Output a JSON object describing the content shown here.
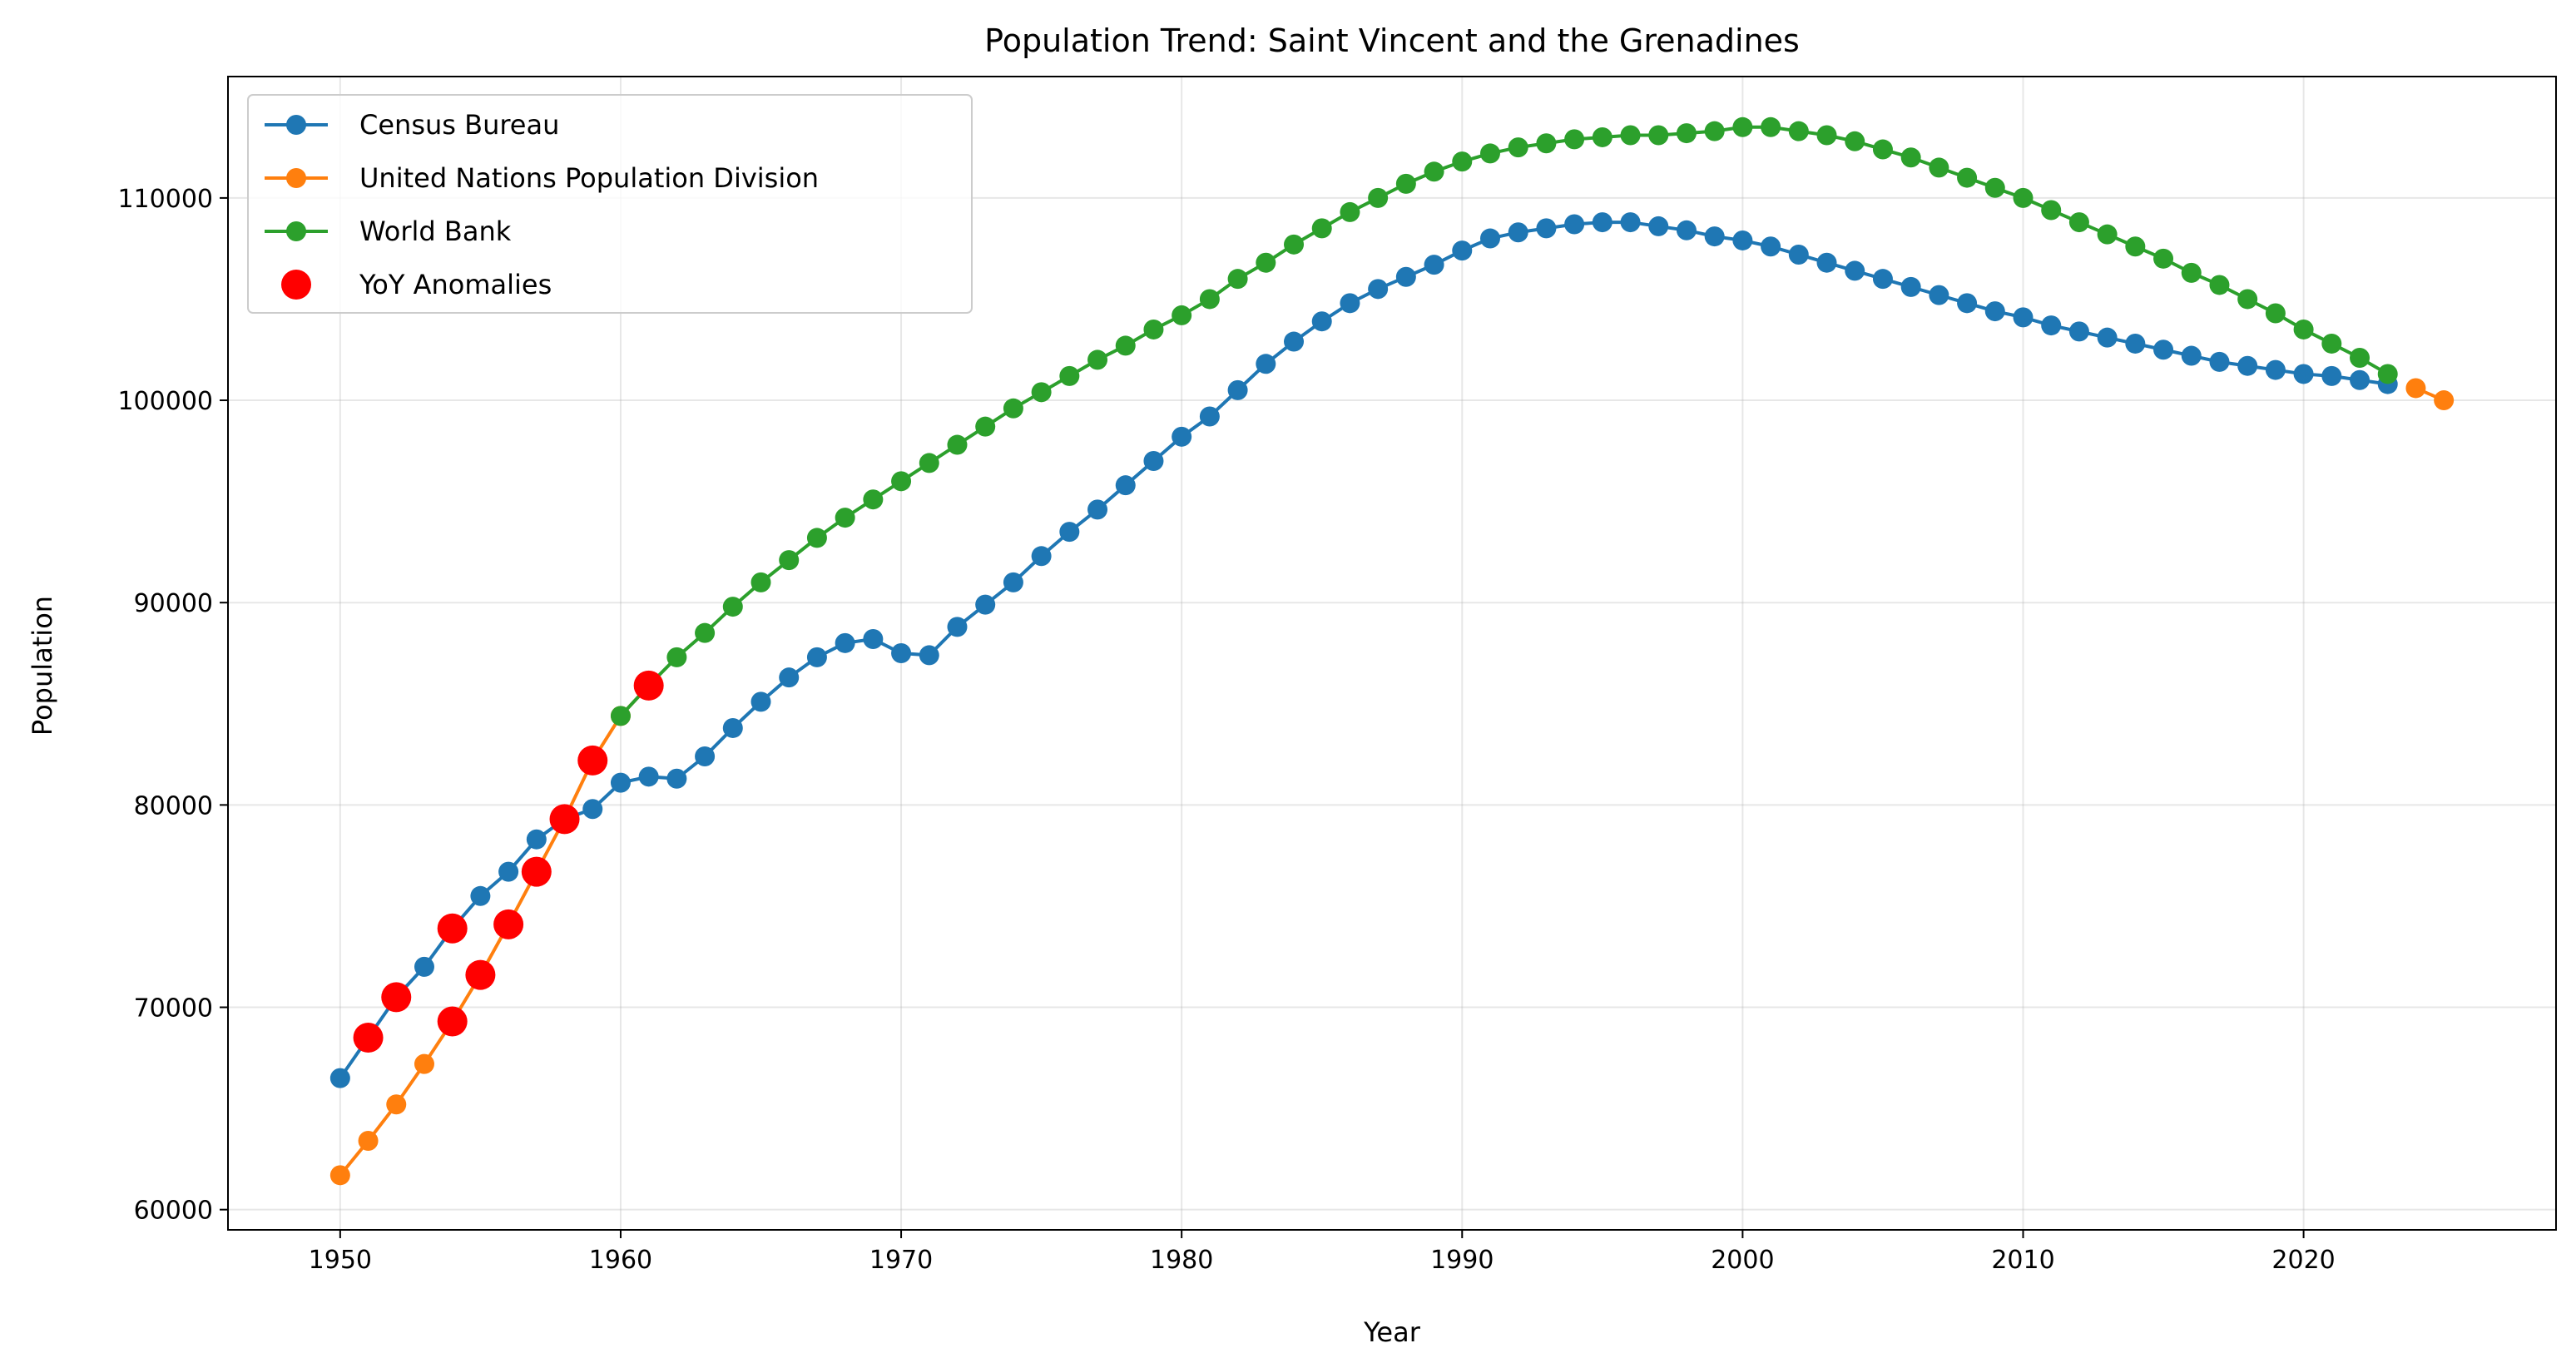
{
  "chart_data": {
    "type": "line",
    "title": "Population Trend: Saint Vincent and the Grenadines",
    "xlabel": "Year",
    "ylabel": "Population",
    "xlim": [
      1946,
      2029
    ],
    "ylim": [
      59000,
      116000
    ],
    "x_ticks": [
      1950,
      1960,
      1970,
      1980,
      1990,
      2000,
      2010,
      2020
    ],
    "y_ticks": [
      60000,
      70000,
      80000,
      90000,
      100000,
      110000
    ],
    "grid": true,
    "legend_position": "top-left",
    "series": [
      {
        "name": "Census Bureau",
        "color": "#1f77b4",
        "x": [
          1950,
          1951,
          1952,
          1953,
          1954,
          1955,
          1956,
          1957,
          1958,
          1959,
          1960,
          1961,
          1962,
          1963,
          1964,
          1965,
          1966,
          1967,
          1968,
          1969,
          1970,
          1971,
          1972,
          1973,
          1974,
          1975,
          1976,
          1977,
          1978,
          1979,
          1980,
          1981,
          1982,
          1983,
          1984,
          1985,
          1986,
          1987,
          1988,
          1989,
          1990,
          1991,
          1992,
          1993,
          1994,
          1995,
          1996,
          1997,
          1998,
          1999,
          2000,
          2001,
          2002,
          2003,
          2004,
          2005,
          2006,
          2007,
          2008,
          2009,
          2010,
          2011,
          2012,
          2013,
          2014,
          2015,
          2016,
          2017,
          2018,
          2019,
          2020,
          2021,
          2022,
          2023
        ],
        "values": [
          66500,
          68500,
          70500,
          72000,
          73900,
          75500,
          76700,
          78300,
          79300,
          79800,
          81100,
          81400,
          81300,
          82400,
          83800,
          85100,
          86300,
          87300,
          88000,
          88200,
          87500,
          87400,
          88800,
          89900,
          91000,
          92300,
          93500,
          94600,
          95800,
          97000,
          98200,
          99200,
          100500,
          101800,
          102900,
          103900,
          104800,
          105500,
          106100,
          106700,
          107400,
          108000,
          108300,
          108500,
          108700,
          108800,
          108800,
          108600,
          108400,
          108100,
          107900,
          107600,
          107200,
          106800,
          106400,
          106000,
          105600,
          105200,
          104800,
          104400,
          104100,
          103700,
          103400,
          103100,
          102800,
          102500,
          102200,
          101900,
          101700,
          101500,
          101300,
          101200,
          101000,
          100800
        ]
      },
      {
        "name": "United Nations Population Division",
        "color": "#ff7f0e",
        "x": [
          1950,
          1951,
          1952,
          1953,
          1954,
          1955,
          1956,
          1957,
          1958,
          1959,
          1960,
          1961,
          2024,
          2025
        ],
        "values": [
          61700,
          63400,
          65200,
          67200,
          69300,
          71600,
          74100,
          76700,
          79300,
          82200,
          84400,
          85900,
          100600,
          100000
        ]
      },
      {
        "name": "World Bank",
        "color": "#2ca02c",
        "x": [
          1960,
          1961,
          1962,
          1963,
          1964,
          1965,
          1966,
          1967,
          1968,
          1969,
          1970,
          1971,
          1972,
          1973,
          1974,
          1975,
          1976,
          1977,
          1978,
          1979,
          1980,
          1981,
          1982,
          1983,
          1984,
          1985,
          1986,
          1987,
          1988,
          1989,
          1990,
          1991,
          1992,
          1993,
          1994,
          1995,
          1996,
          1997,
          1998,
          1999,
          2000,
          2001,
          2002,
          2003,
          2004,
          2005,
          2006,
          2007,
          2008,
          2009,
          2010,
          2011,
          2012,
          2013,
          2014,
          2015,
          2016,
          2017,
          2018,
          2019,
          2020,
          2021,
          2022,
          2023
        ],
        "values": [
          84400,
          85900,
          87300,
          88500,
          89800,
          91000,
          92100,
          93200,
          94200,
          95100,
          96000,
          96900,
          97800,
          98700,
          99600,
          100400,
          101200,
          102000,
          102700,
          103500,
          104200,
          105000,
          106000,
          106800,
          107700,
          108500,
          109300,
          110000,
          110700,
          111300,
          111800,
          112200,
          112500,
          112700,
          112900,
          113000,
          113100,
          113100,
          113200,
          113300,
          113500,
          113500,
          113300,
          113100,
          112800,
          112400,
          112000,
          111500,
          111000,
          110500,
          110000,
          109400,
          108800,
          108200,
          107600,
          107000,
          106300,
          105700,
          105000,
          104300,
          103500,
          102800,
          102100,
          101300
        ]
      },
      {
        "name": "YoY Anomalies",
        "color": "#ff0000",
        "kind": "scatter",
        "x": [
          1951,
          1952,
          1954,
          1954,
          1955,
          1956,
          1957,
          1958,
          1959,
          1961
        ],
        "values": [
          68500,
          70500,
          73900,
          69300,
          71600,
          74100,
          76700,
          79300,
          82200,
          85900
        ]
      }
    ]
  }
}
